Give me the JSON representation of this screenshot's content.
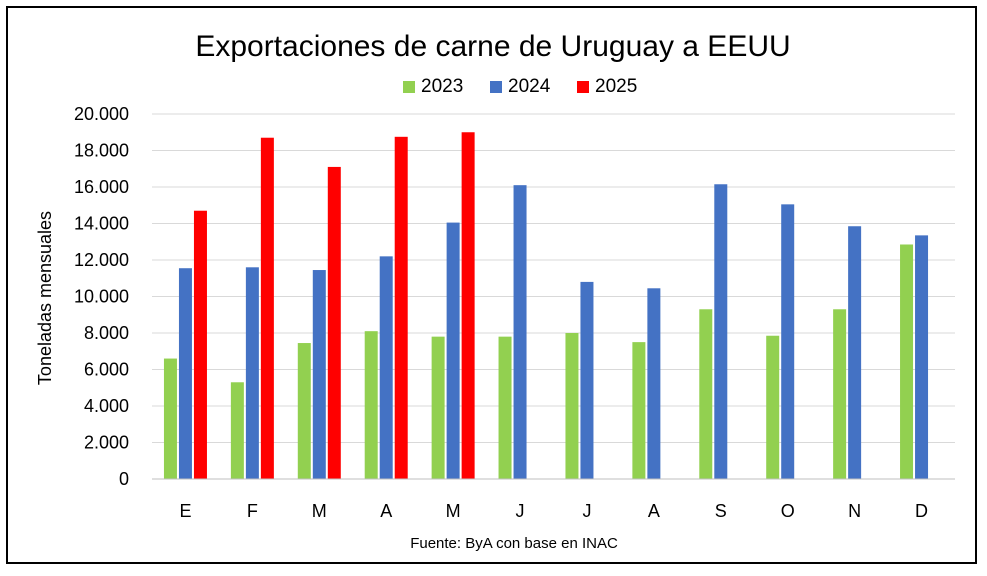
{
  "chart_data": {
    "type": "bar",
    "title": "Exportaciones de carne de Uruguay a EEUU",
    "ylabel": "Toneladas mensuales",
    "xlabel": "",
    "source": "Fuente: ByA con base en INAC",
    "categories": [
      "E",
      "F",
      "M",
      "A",
      "M",
      "J",
      "J",
      "A",
      "S",
      "O",
      "N",
      "D"
    ],
    "ylim": [
      0,
      20000
    ],
    "yticks": [
      0,
      2000,
      4000,
      6000,
      8000,
      10000,
      12000,
      14000,
      16000,
      18000,
      20000
    ],
    "ytick_labels": [
      "0",
      "2.000",
      "4.000",
      "6.000",
      "8.000",
      "10.000",
      "12.000",
      "14.000",
      "16.000",
      "18.000",
      "20.000"
    ],
    "grid": true,
    "legend_position": "top",
    "series": [
      {
        "name": "2023",
        "color": "#92d050",
        "values": [
          6600,
          5300,
          7450,
          8100,
          7800,
          7800,
          8000,
          7500,
          9300,
          7850,
          9300,
          12850
        ]
      },
      {
        "name": "2024",
        "color": "#4472c4",
        "values": [
          11550,
          11600,
          11450,
          12200,
          14050,
          16100,
          10800,
          10450,
          16150,
          15050,
          13850,
          13350
        ]
      },
      {
        "name": "2025",
        "color": "#ff0000",
        "values": [
          14700,
          18700,
          17100,
          18750,
          19000,
          null,
          null,
          null,
          null,
          null,
          null,
          null
        ]
      }
    ]
  }
}
